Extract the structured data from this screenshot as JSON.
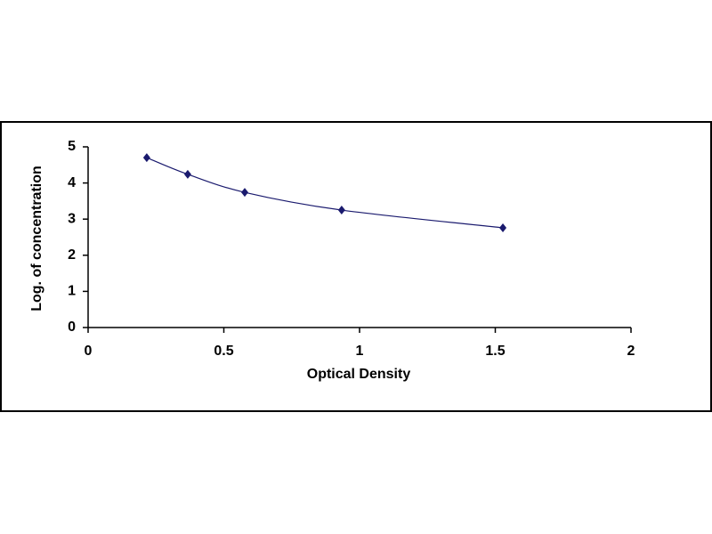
{
  "chart_data": {
    "type": "scatter",
    "xlabel": "Optical Density",
    "ylabel": "Log. of concentration",
    "series": [
      {
        "x": [
          0.216,
          0.367,
          0.577,
          0.934,
          1.528
        ],
        "values": [
          4.7,
          4.24,
          3.74,
          3.25,
          2.76
        ],
        "color": "#1a1a6e"
      }
    ],
    "xlim": [
      0,
      2
    ],
    "xticks": [
      0,
      0.5,
      1,
      1.5,
      2
    ],
    "ylim": [
      0,
      5
    ],
    "yticks": [
      0,
      1,
      2,
      3,
      4,
      5
    ],
    "grid": false,
    "smooth": true
  }
}
